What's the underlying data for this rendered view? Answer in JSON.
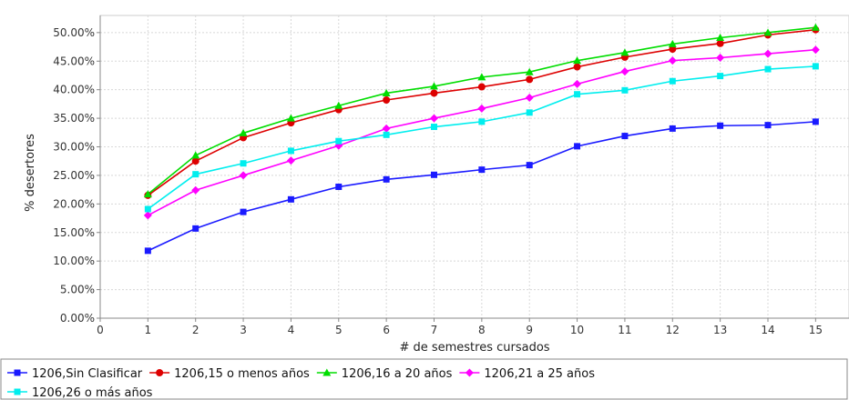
{
  "chart_data": {
    "type": "line",
    "title": "",
    "xlabel": "# de semestres cursados",
    "ylabel": "% desertores",
    "xlim": [
      0,
      15.7
    ],
    "ylim": [
      0,
      53
    ],
    "x_ticks": [
      0,
      1,
      2,
      3,
      4,
      5,
      6,
      7,
      8,
      9,
      10,
      11,
      12,
      13,
      14,
      15
    ],
    "y_ticks": [
      0,
      5,
      10,
      15,
      20,
      25,
      30,
      35,
      40,
      45,
      50
    ],
    "y_tick_labels": [
      "0.00%",
      "5.00%",
      "10.00%",
      "15.00%",
      "20.00%",
      "25.00%",
      "30.00%",
      "35.00%",
      "40.00%",
      "45.00%",
      "50.00%"
    ],
    "grid": true,
    "legend_position": "bottom",
    "x": [
      1,
      2,
      3,
      4,
      5,
      6,
      7,
      8,
      9,
      10,
      11,
      12,
      13,
      14,
      15
    ],
    "series": [
      {
        "name": "1206,Sin Clasificar",
        "color": "#1a1aff",
        "marker": "square",
        "values": [
          11.8,
          15.7,
          18.6,
          20.8,
          23.0,
          24.3,
          25.1,
          26.0,
          26.8,
          30.1,
          31.9,
          33.2,
          33.7,
          33.8,
          34.4
        ]
      },
      {
        "name": "1206,15 o menos años",
        "color": "#dd0000",
        "marker": "circle",
        "values": [
          21.5,
          27.5,
          31.6,
          34.2,
          36.5,
          38.2,
          39.4,
          40.5,
          41.8,
          44.0,
          45.7,
          47.1,
          48.1,
          49.6,
          50.5
        ]
      },
      {
        "name": "1206,16 a 20 años",
        "color": "#00dd00",
        "marker": "triangle",
        "values": [
          21.7,
          28.5,
          32.4,
          35.0,
          37.2,
          39.4,
          40.6,
          42.2,
          43.1,
          45.1,
          46.5,
          48.0,
          49.1,
          50.0,
          50.9
        ]
      },
      {
        "name": "1206,21 a 25 años",
        "color": "#ff00ff",
        "marker": "diamond",
        "values": [
          18.0,
          22.4,
          25.0,
          27.6,
          30.2,
          33.2,
          35.0,
          36.7,
          38.6,
          41.0,
          43.2,
          45.1,
          45.6,
          46.3,
          47.0
        ]
      },
      {
        "name": "1206,26 o más años",
        "color": "#00eeee",
        "marker": "square",
        "values": [
          19.1,
          25.2,
          27.1,
          29.3,
          31.0,
          32.1,
          33.5,
          34.4,
          36.0,
          39.2,
          39.9,
          41.5,
          42.4,
          43.6,
          44.1
        ]
      }
    ]
  }
}
